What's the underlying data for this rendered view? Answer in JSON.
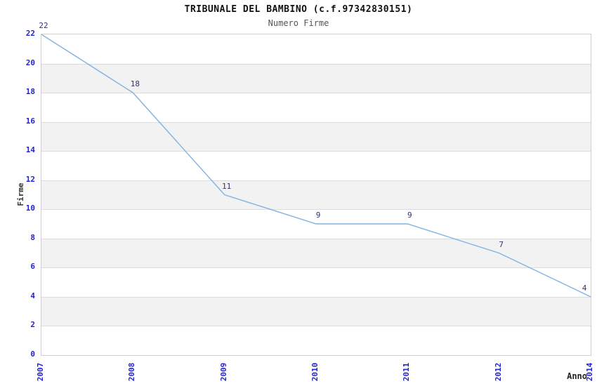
{
  "header": {
    "title": "TRIBUNALE DEL BAMBINO (c.f.97342830151)",
    "subtitle": "Numero Firme"
  },
  "chart_data": {
    "type": "line",
    "title": "TRIBUNALE DEL BAMBINO (c.f.97342830151)",
    "subtitle": "Numero Firme",
    "categories": [
      "2007",
      "2008",
      "2009",
      "2010",
      "2011",
      "2012",
      "2014"
    ],
    "values": [
      22,
      18,
      11,
      9,
      9,
      7,
      4
    ],
    "xlabel": "Anno",
    "ylabel": "Firme",
    "ylim": [
      0,
      22
    ],
    "ytick_step": 2,
    "grid": true,
    "legend": "none",
    "band_pattern": "alternating horizontal bands, white and light gray",
    "colors": {
      "line": "#82b2e2",
      "tick_label": "#2323cc",
      "point_label": "#333377",
      "band_alt": "#f2f2f2",
      "grid_line": "#dcdcdc",
      "plot_border": "#d0d0d0",
      "title": "#111111",
      "subtitle": "#555555",
      "axis_title": "#333333"
    }
  }
}
